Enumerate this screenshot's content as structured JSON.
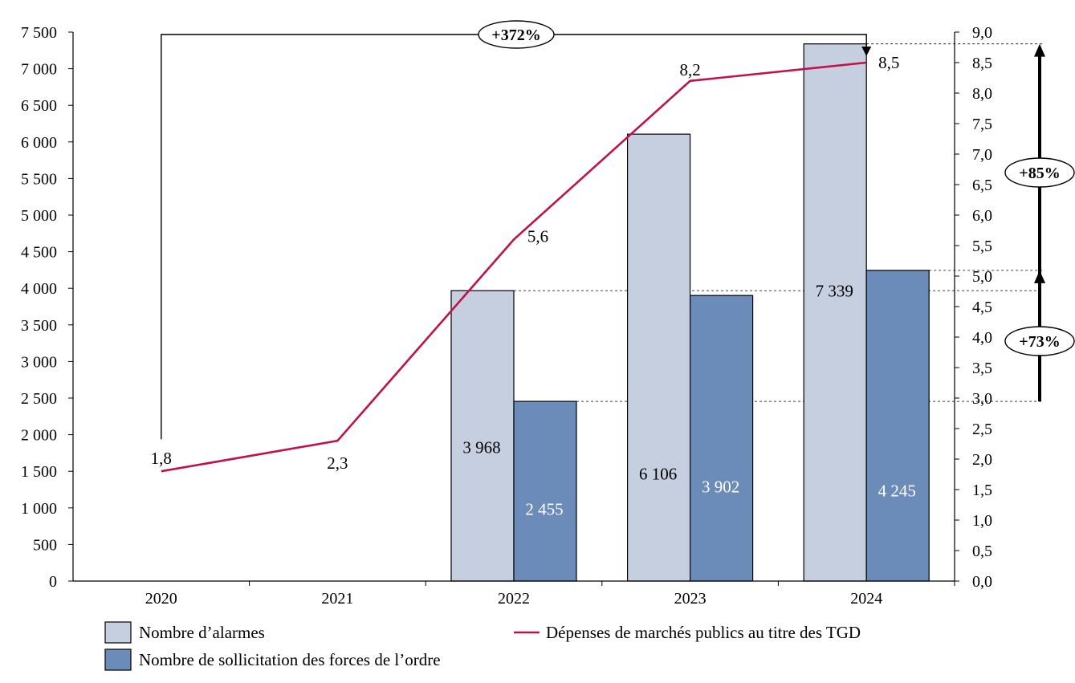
{
  "chart_data": {
    "type": "bar",
    "categories": [
      "2020",
      "2021",
      "2022",
      "2023",
      "2024"
    ],
    "series": [
      {
        "name": "Nombre d’alarmes",
        "type": "bar",
        "axis": "left",
        "color": "#c5cfe0",
        "values": [
          null,
          null,
          3968,
          6106,
          7339
        ],
        "labels": [
          "",
          "",
          "3 968",
          "6 106",
          "7 339"
        ]
      },
      {
        "name": "Nombre de sollicitation des forces de l’ordre",
        "type": "bar",
        "axis": "left",
        "color": "#6b8cb8",
        "values": [
          null,
          null,
          2455,
          3902,
          4245
        ],
        "labels": [
          "",
          "",
          "2 455",
          "3 902",
          "4 245"
        ]
      },
      {
        "name": "Dépenses de marchés publics au titre des TGD",
        "type": "line",
        "axis": "right",
        "color": "#c0124a",
        "values": [
          1.8,
          2.3,
          5.6,
          8.2,
          8.5
        ],
        "labels": [
          "1,8",
          "2,3",
          "5,6",
          "8,2",
          "8,5"
        ]
      }
    ],
    "y_left": {
      "ylim": [
        0,
        7500
      ],
      "ticks": [
        0,
        500,
        1000,
        1500,
        2000,
        2500,
        3000,
        3500,
        4000,
        4500,
        5000,
        5500,
        6000,
        6500,
        7000,
        7500
      ],
      "tick_labels": [
        "0",
        "500",
        "1 000",
        "1 500",
        "2 000",
        "2 500",
        "3 000",
        "3 500",
        "4 000",
        "4 500",
        "5 000",
        "5 500",
        "6 000",
        "6 500",
        "7 000",
        "7 500"
      ]
    },
    "y_right": {
      "ylim": [
        0,
        9
      ],
      "ticks": [
        0,
        0.5,
        1,
        1.5,
        2,
        2.5,
        3,
        3.5,
        4,
        4.5,
        5,
        5.5,
        6,
        6.5,
        7,
        7.5,
        8,
        8.5,
        9
      ],
      "tick_labels": [
        "0,0",
        "0,5",
        "1,0",
        "1,5",
        "2,0",
        "2,5",
        "3,0",
        "3,5",
        "4,0",
        "4,5",
        "5,0",
        "5,5",
        "6,0",
        "6,5",
        "7,0",
        "7,5",
        "8,0",
        "8,5",
        "9,0"
      ]
    },
    "annotations": [
      {
        "text": "+372%",
        "from_category": "2020",
        "to_category": "2024",
        "series": "Dépenses de marchés publics au titre des TGD"
      },
      {
        "text": "+85%",
        "from_value": 3968,
        "to_value": 7339,
        "series": "Nombre d’alarmes"
      },
      {
        "text": "+73%",
        "from_value": 2455,
        "to_value": 4245,
        "series": "Nombre de sollicitation des forces de l’ordre"
      }
    ],
    "legend": {
      "position": "bottom",
      "items": [
        {
          "label": "Nombre d’alarmes",
          "kind": "box",
          "color": "#c5cfe0"
        },
        {
          "label": "Dépenses de marchés publics au titre des TGD",
          "kind": "line",
          "color": "#c0124a"
        },
        {
          "label": "Nombre de sollicitation des forces de l’ordre",
          "kind": "box",
          "color": "#6b8cb8"
        }
      ]
    },
    "grid": false
  }
}
